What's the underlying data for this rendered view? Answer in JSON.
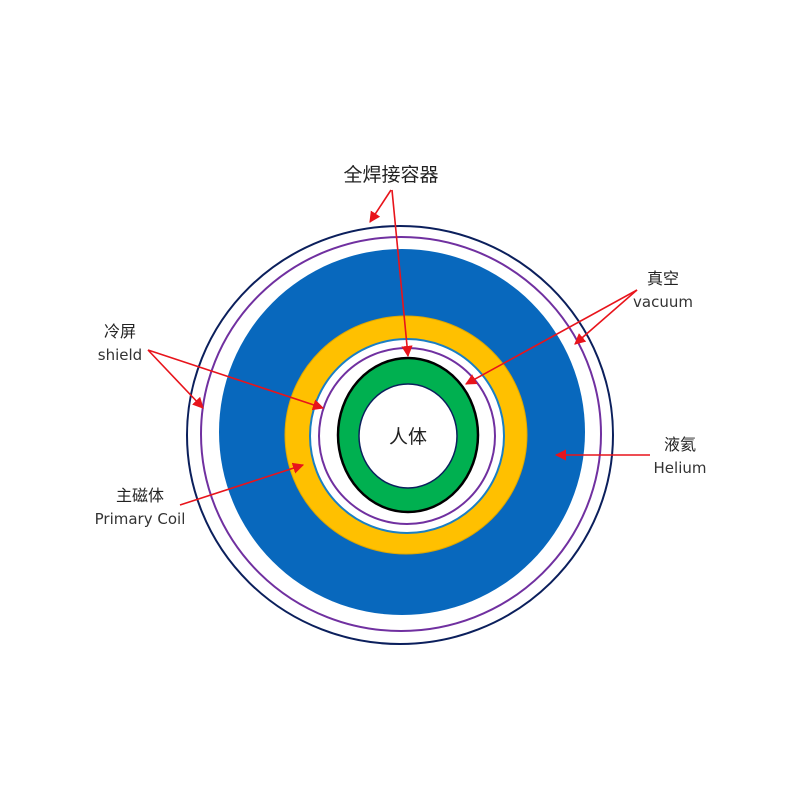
{
  "labels": {
    "vessel": "全焊接容器",
    "vacuum_zh": "真空",
    "vacuum_en": "vacuum",
    "shield_zh": "冷屏",
    "shield_en": "shield",
    "helium_zh": "液氦",
    "helium_en": "Helium",
    "coil_zh": "主磁体",
    "coil_en": "Primary Coil",
    "body": "人体"
  },
  "colors": {
    "vessel": "#0b1f5c",
    "shield": "#7030a0",
    "helium": "#0868bd",
    "coil": "#ffc000",
    "inner_line": "#1a7fc4",
    "green_ring": "#00b050",
    "arrow": "#e8141b"
  }
}
